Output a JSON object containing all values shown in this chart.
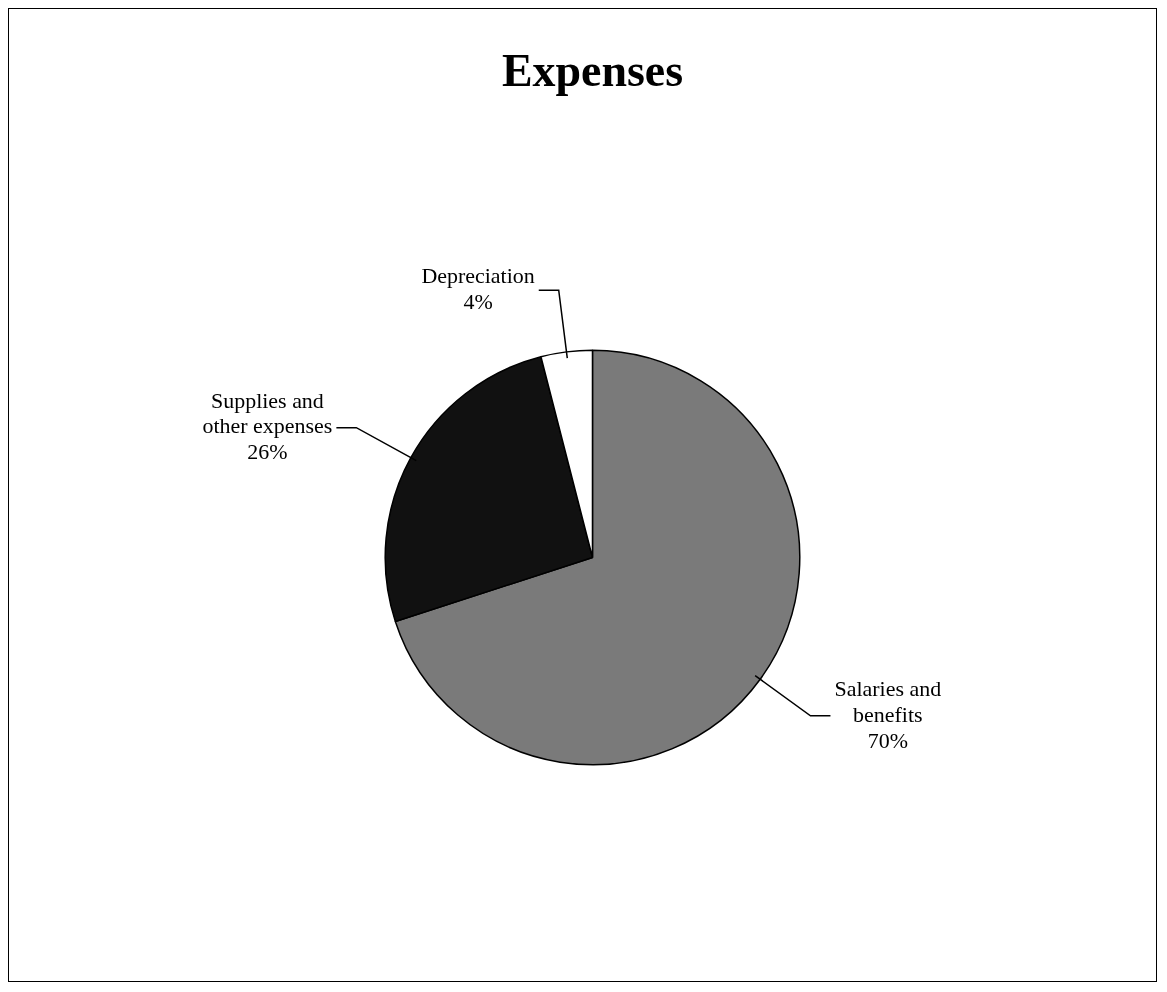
{
  "chart_data": {
    "type": "pie",
    "title": "Expenses",
    "categories": [
      "Salaries and benefits",
      "Supplies and other expenses",
      "Depreciation"
    ],
    "values": [
      70,
      26,
      4
    ],
    "colors": [
      "#7a7a7a",
      "#111111",
      "#ffffff"
    ],
    "value_labels": [
      "70%",
      "26%",
      "4%"
    ],
    "legend": false
  }
}
